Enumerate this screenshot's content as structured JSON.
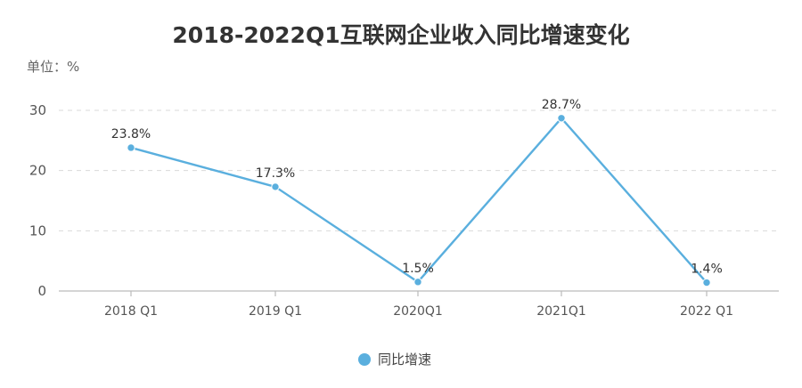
{
  "chart_data": {
    "type": "line",
    "title": "2018-2022Q1互联网企业收入同比增速变化",
    "unit_label": "单位：%",
    "categories": [
      "2018 Q1",
      "2019 Q1",
      "2020Q1",
      "2021Q1",
      "2022 Q1"
    ],
    "series": [
      {
        "name": "同比增速",
        "values": [
          23.8,
          17.3,
          1.5,
          28.7,
          1.4
        ],
        "labels": [
          "23.8%",
          "17.3%",
          "1.5%",
          "28.7%",
          "1.4%"
        ],
        "color": "#5aafde"
      }
    ],
    "ylim": [
      0,
      30
    ],
    "yticks": [
      0,
      10,
      20,
      30
    ],
    "ytick_labels": [
      "0",
      "10",
      "20",
      "30"
    ],
    "grid": true,
    "legend_position": "bottom"
  }
}
